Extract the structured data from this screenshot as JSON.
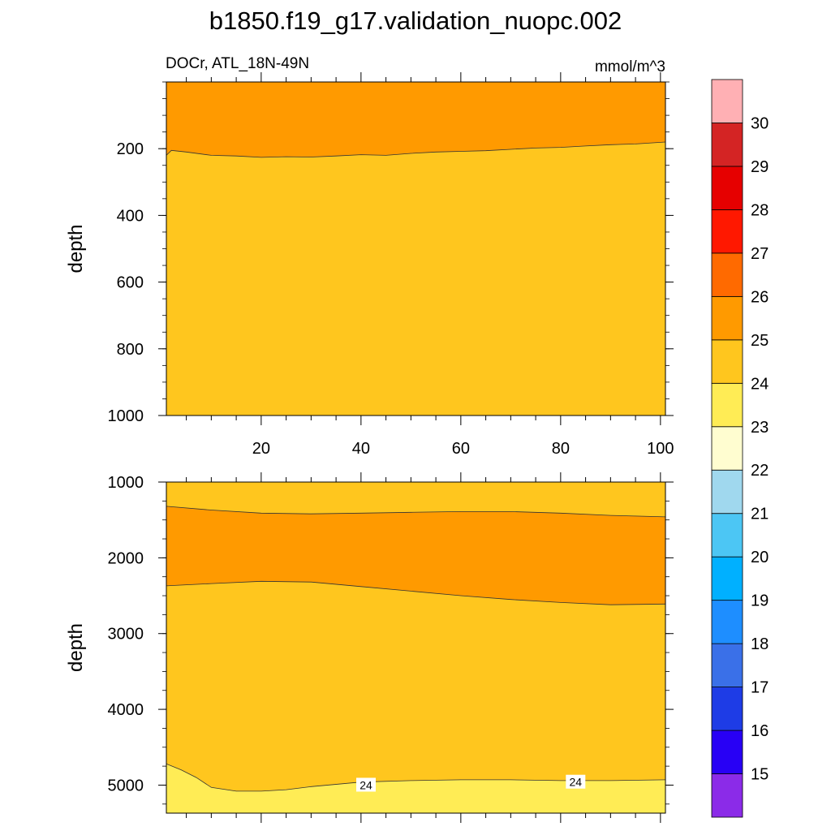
{
  "title": "b1850.f19_g17.validation_nuopc.002",
  "chart_data": [
    {
      "type": "contour",
      "panel": "upper",
      "left_label": "DOCr, ATL_18N-49N",
      "right_label": "mmol/m^3",
      "ylabel": "depth",
      "xlim": [
        1,
        101
      ],
      "ylim": [
        0,
        1000
      ],
      "y_reversed": true,
      "xticks": [
        "20",
        "40",
        "60",
        "80",
        "100"
      ],
      "yticks": [
        "200",
        "400",
        "600",
        "800",
        "1000"
      ],
      "contour_24_25_depth": {
        "x": [
          1,
          2,
          5,
          10,
          15,
          20,
          25,
          30,
          35,
          40,
          45,
          50,
          55,
          60,
          65,
          70,
          75,
          80,
          85,
          90,
          95,
          101
        ],
        "y": [
          220,
          205,
          210,
          220,
          222,
          226,
          224,
          225,
          222,
          218,
          220,
          214,
          210,
          208,
          206,
          202,
          198,
          196,
          192,
          188,
          186,
          180
        ]
      }
    },
    {
      "type": "contour",
      "panel": "lower",
      "ylabel": "depth",
      "xlim": [
        1,
        101
      ],
      "ylim": [
        1000,
        5370
      ],
      "y_reversed": true,
      "yticks": [
        "1000",
        "2000",
        "3000",
        "4000",
        "5000"
      ],
      "contour_upper_24_25": {
        "x": [
          1,
          10,
          20,
          30,
          40,
          50,
          60,
          70,
          80,
          90,
          101
        ],
        "y": [
          1320,
          1370,
          1410,
          1420,
          1410,
          1400,
          1390,
          1390,
          1410,
          1440,
          1460
        ]
      },
      "contour_lower_25_24": {
        "x": [
          1,
          10,
          20,
          30,
          40,
          50,
          60,
          70,
          80,
          90,
          101
        ],
        "y": [
          2370,
          2340,
          2310,
          2320,
          2380,
          2440,
          2500,
          2550,
          2590,
          2620,
          2610
        ]
      },
      "contour_24_23": {
        "x": [
          1,
          4,
          7,
          10,
          15,
          20,
          25,
          30,
          40,
          50,
          60,
          70,
          80,
          90,
          101
        ],
        "y": [
          4720,
          4800,
          4900,
          5030,
          5080,
          5080,
          5060,
          5020,
          4960,
          4940,
          4930,
          4930,
          4940,
          4940,
          4930
        ]
      },
      "contour_labels": [
        {
          "text": "24",
          "x": 41,
          "y": 5000
        },
        {
          "text": "24",
          "x": 83,
          "y": 4960
        }
      ]
    }
  ],
  "colorbar": {
    "labels": [
      "15",
      "16",
      "17",
      "18",
      "19",
      "20",
      "21",
      "22",
      "23",
      "24",
      "25",
      "26",
      "27",
      "28",
      "29",
      "30"
    ],
    "colors": [
      "#8B2BE8",
      "#2800F5",
      "#1E3CE6",
      "#3A70E8",
      "#1E8EFF",
      "#00B0FF",
      "#4CC6F4",
      "#A0D8EE",
      "#FFFDD0",
      "#FFEC55",
      "#FFC61E",
      "#FF9A00",
      "#FF6A00",
      "#FF1800",
      "#E60000",
      "#D42424",
      "#FFB0B4"
    ]
  }
}
